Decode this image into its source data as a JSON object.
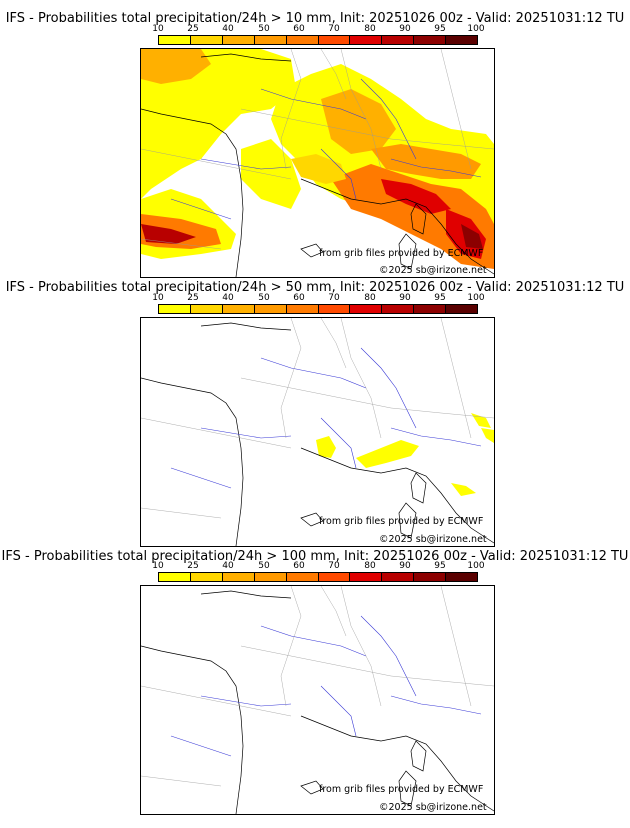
{
  "panels": [
    {
      "title": "IFS - Probabilities total precipitation/24h > 10 mm, Init: 20251026 00z - Valid: 20251031:12 TU",
      "credit_source": "from grib files provided by ECMWF",
      "credit_copyright": "©2025 sb@irizone.net"
    },
    {
      "title": "IFS - Probabilities total precipitation/24h > 50 mm, Init: 20251026 00z - Valid: 20251031:12 TU",
      "credit_source": "from grib files provided by ECMWF",
      "credit_copyright": "©2025 sb@irizone.net"
    },
    {
      "title": "IFS - Probabilities total precipitation/24h > 100 mm, Init: 20251026 00z - Valid: 20251031:12 TU",
      "credit_source": "from grib files provided by ECMWF",
      "credit_copyright": "©2025 sb@irizone.net"
    }
  ],
  "colorbar": {
    "ticks": [
      "10",
      "25",
      "40",
      "50",
      "60",
      "70",
      "80",
      "90",
      "95",
      "100"
    ],
    "colors": [
      "#ffff00",
      "#ffd700",
      "#ffb000",
      "#ff9a00",
      "#ff7a00",
      "#ff4a00",
      "#e00000",
      "#b80000",
      "#8c0000",
      "#5a0000"
    ]
  }
}
